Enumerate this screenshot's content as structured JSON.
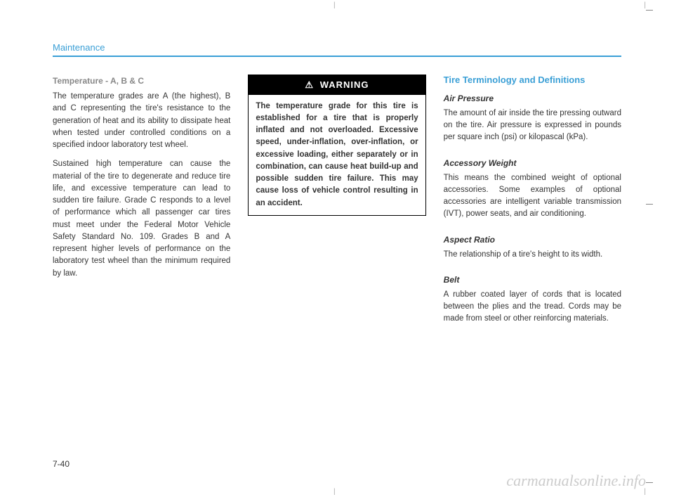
{
  "header": {
    "title": "Maintenance"
  },
  "col1": {
    "heading": "Temperature - A, B & C",
    "p1": "The temperature grades are A (the highest), B and C representing the tire's resistance to the generation of heat and its ability to dissipate heat when tested under controlled conditions on a specified indoor laboratory test wheel.",
    "p2": "Sustained high temperature can cause the material of the tire to degenerate and reduce tire life, and excessive temperature can lead to sudden tire failure. Grade C responds to a level of performance which all passenger car tires must meet under the Federal Motor Vehicle Safety Standard No. 109. Grades B and A represent higher levels of performance on the laboratory test wheel than the minimum required by law."
  },
  "col2": {
    "warning_label": "WARNING",
    "warning_icon": "⚠",
    "warning_body": "The temperature grade for this tire is established for a tire that is properly inflated and not overloaded. Excessive speed, under-inflation, over-inflation, or excessive loading, either separately or in combination, can cause heat build-up and possible sudden tire failure. This may cause loss of vehicle control resulting in an accident."
  },
  "col3": {
    "section_title": "Tire Terminology and Definitions",
    "t1_title": "Air Pressure",
    "t1_body": "The amount of air inside the tire pressing outward on the tire. Air pressure is expressed in pounds per square inch (psi) or kilopascal (kPa).",
    "t2_title": "Accessory Weight",
    "t2_body": "This means the combined weight of optional accessories. Some examples of optional accessories are intelligent variable transmission (IVT), power seats, and air conditioning.",
    "t3_title": "Aspect Ratio",
    "t3_body": "The relationship of a tire's height to its width.",
    "t4_title": "Belt",
    "t4_body": "A rubber coated layer of cords that is located between the plies and the tread. Cords may be made from steel or other reinforcing materials."
  },
  "page_number": "7-40",
  "watermark": "carmanualsonline.info"
}
